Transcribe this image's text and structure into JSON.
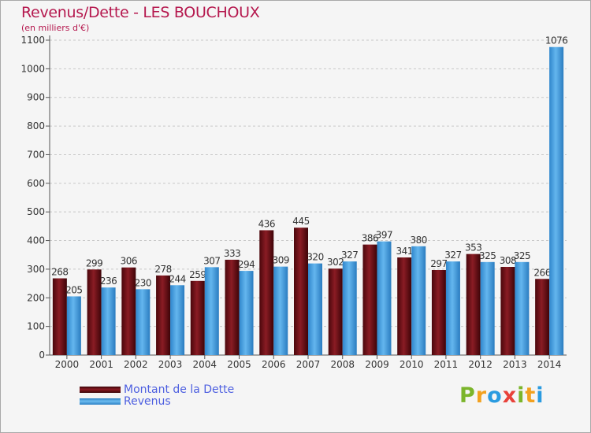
{
  "chart_data": {
    "type": "bar",
    "title": "Revenus/Dette - LES BOUCHOUX",
    "subtitle": "(en milliers d'€)",
    "categories": [
      "2000",
      "2001",
      "2002",
      "2003",
      "2004",
      "2005",
      "2006",
      "2007",
      "2008",
      "2009",
      "2010",
      "2011",
      "2012",
      "2013",
      "2014"
    ],
    "series": [
      {
        "name": "Montant de la Dette",
        "color": "#6e1017",
        "values": [
          268,
          299,
          306,
          278,
          259,
          333,
          436,
          445,
          302,
          386,
          341,
          297,
          353,
          308,
          266
        ]
      },
      {
        "name": "Revenus",
        "color": "#4da3e3",
        "values": [
          205,
          236,
          230,
          244,
          307,
          294,
          309,
          320,
          327,
          397,
          380,
          327,
          325,
          325,
          1076
        ]
      }
    ],
    "ylim": [
      0,
      1100
    ],
    "yticks": [
      0,
      100,
      200,
      300,
      400,
      500,
      600,
      700,
      800,
      900,
      1000,
      1100
    ],
    "grid": true,
    "legend_position": "bottom-left"
  },
  "legend": {
    "dette_label": "Montant de la Dette",
    "revenus_label": "Revenus"
  },
  "logo": {
    "letters": [
      "P",
      "r",
      "o",
      "x",
      "i",
      "t",
      "i"
    ],
    "colors": [
      "#7bb52b",
      "#f2a11f",
      "#2a9be0",
      "#e8423a",
      "#7bb52b",
      "#f2a11f",
      "#2a9be0"
    ]
  }
}
